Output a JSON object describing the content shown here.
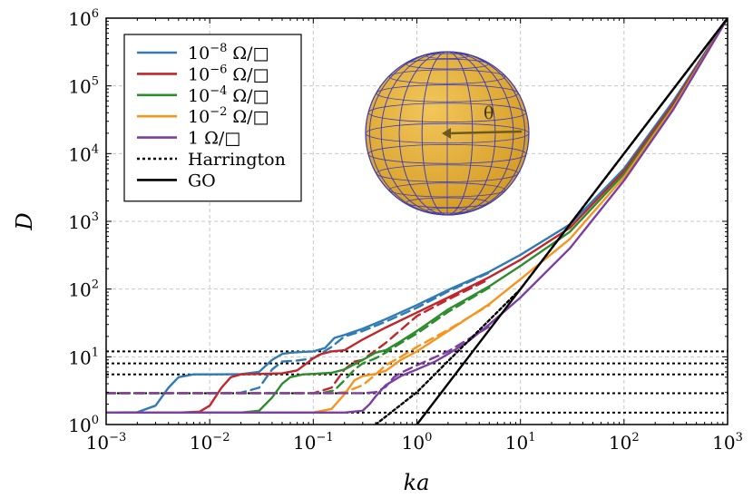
{
  "chart_data": {
    "type": "line",
    "title": "",
    "xlabel": "ka",
    "ylabel": "D",
    "xscale": "log",
    "yscale": "log",
    "xlim": [
      0.001,
      1000
    ],
    "ylim": [
      1,
      1000000
    ],
    "grid": true,
    "legend_position": "top-left",
    "x_ticks": [
      {
        "base": "10",
        "exp": "−3",
        "value": 0.001
      },
      {
        "base": "10",
        "exp": "−2",
        "value": 0.01
      },
      {
        "base": "10",
        "exp": "−1",
        "value": 0.1
      },
      {
        "base": "10",
        "exp": "0",
        "value": 1
      },
      {
        "base": "10",
        "exp": "1",
        "value": 10
      },
      {
        "base": "10",
        "exp": "2",
        "value": 100
      },
      {
        "base": "10",
        "exp": "3",
        "value": 1000
      }
    ],
    "y_ticks": [
      {
        "base": "10",
        "exp": "0",
        "value": 1
      },
      {
        "base": "10",
        "exp": "1",
        "value": 10
      },
      {
        "base": "10",
        "exp": "2",
        "value": 100
      },
      {
        "base": "10",
        "exp": "3",
        "value": 1000
      },
      {
        "base": "10",
        "exp": "4",
        "value": 10000
      },
      {
        "base": "10",
        "exp": "5",
        "value": 100000
      },
      {
        "base": "10",
        "exp": "6",
        "value": 1000000
      }
    ],
    "series": [
      {
        "name": "10⁻⁸ Ω/□",
        "legend": {
          "prefix": "10",
          "exp": "−8",
          "unit": " Ω/□"
        },
        "color": "#2f7bb5",
        "style": "solid",
        "x": [
          0.001,
          0.002,
          0.003,
          0.004,
          0.005,
          0.007,
          0.01,
          0.02,
          0.03,
          0.04,
          0.05,
          0.06,
          0.08,
          0.1,
          0.13,
          0.16,
          0.2,
          0.3,
          0.5,
          1,
          2,
          5,
          10,
          30,
          100,
          300,
          1000
        ],
        "y": [
          1.5,
          1.52,
          1.9,
          3.5,
          5.0,
          5.5,
          5.5,
          5.55,
          6.0,
          9.0,
          11.0,
          11.5,
          11.8,
          12.0,
          13.5,
          19.0,
          21.0,
          26.0,
          36.0,
          58.0,
          97.0,
          180.0,
          320.0,
          900.0,
          6000.0,
          60000.0,
          1000000.0
        ]
      },
      {
        "name": "10⁻⁸ Ω/□ (dashed)",
        "color": "#2f7bb5",
        "style": "dashed",
        "x": [
          0.001,
          0.01,
          0.02,
          0.03,
          0.04,
          0.05,
          0.07,
          0.1,
          0.15,
          0.2,
          0.3,
          0.5,
          1,
          2,
          5
        ],
        "y": [
          2.9,
          2.9,
          2.95,
          3.5,
          6.5,
          8.5,
          8.8,
          9.5,
          14.0,
          20.0,
          24.0,
          33.0,
          53.0,
          92.0,
          175.0
        ]
      },
      {
        "name": "10⁻⁶ Ω/□",
        "legend": {
          "prefix": "10",
          "exp": "−6",
          "unit": " Ω/□"
        },
        "color": "#c0272d",
        "style": "solid",
        "x": [
          0.001,
          0.005,
          0.008,
          0.01,
          0.013,
          0.016,
          0.02,
          0.03,
          0.05,
          0.07,
          0.1,
          0.12,
          0.15,
          0.2,
          0.3,
          0.5,
          1,
          2,
          5,
          10,
          30,
          100,
          300,
          1000
        ],
        "y": [
          1.5,
          1.5,
          1.55,
          1.9,
          3.5,
          5.0,
          5.5,
          5.6,
          5.7,
          6.3,
          9.5,
          11.0,
          12.0,
          12.5,
          18.0,
          27.0,
          45.0,
          75.0,
          150.0,
          270.0,
          800.0,
          5500.0,
          55000.0,
          1000000.0
        ]
      },
      {
        "name": "10⁻⁶ Ω/□ (dashed)",
        "color": "#c0272d",
        "style": "dashed",
        "x": [
          0.001,
          0.1,
          0.15,
          0.2,
          0.25,
          0.3,
          0.5,
          1,
          2,
          5
        ],
        "y": [
          2.9,
          2.9,
          3.5,
          6.5,
          8.5,
          9.0,
          16.0,
          40.0,
          70.0,
          140.0
        ]
      },
      {
        "name": "10⁻⁴ Ω/□",
        "legend": {
          "prefix": "10",
          "exp": "−4",
          "unit": " Ω/□"
        },
        "color": "#2e8b2e",
        "style": "solid",
        "x": [
          0.001,
          0.02,
          0.03,
          0.04,
          0.05,
          0.06,
          0.08,
          0.1,
          0.15,
          0.2,
          0.3,
          0.4,
          0.5,
          0.7,
          1,
          2,
          5,
          10,
          30,
          100,
          300,
          1000
        ],
        "y": [
          1.5,
          1.5,
          1.6,
          2.5,
          4.0,
          5.0,
          5.5,
          5.6,
          5.8,
          6.5,
          9.0,
          11.5,
          12.5,
          17.0,
          24.0,
          50.0,
          110.0,
          220.0,
          700.0,
          5000.0,
          50000.0,
          1000000.0
        ]
      },
      {
        "name": "10⁻⁴ Ω/□ (dashed)",
        "color": "#2e8b2e",
        "style": "dashed",
        "x": [
          0.001,
          0.12,
          0.16,
          0.2,
          0.25,
          0.3,
          0.4,
          0.5,
          0.7,
          1,
          2,
          5
        ],
        "y": [
          2.9,
          2.9,
          3.2,
          4.5,
          6.5,
          8.0,
          9.5,
          11.5,
          16.0,
          22.0,
          46.0,
          105.0
        ]
      },
      {
        "name": "10⁻² Ω/□",
        "legend": {
          "prefix": "10",
          "exp": "−2",
          "unit": " Ω/□"
        },
        "color": "#f7941d",
        "style": "solid",
        "x": [
          0.001,
          0.1,
          0.15,
          0.2,
          0.25,
          0.3,
          0.4,
          0.5,
          0.7,
          1,
          1.5,
          2,
          3,
          5,
          10,
          30,
          100,
          300,
          1000
        ],
        "y": [
          1.5,
          1.5,
          1.7,
          2.8,
          4.5,
          5.2,
          5.6,
          6.2,
          9.0,
          12.0,
          18.0,
          24.0,
          36.0,
          60.0,
          140.0,
          550.0,
          4500.0,
          48000.0,
          1000000.0
        ]
      },
      {
        "name": "10⁻² Ω/□ (dashed)",
        "color": "#f7941d",
        "style": "dashed",
        "x": [
          0.001,
          0.15,
          0.2,
          0.3,
          0.4,
          0.5,
          0.7,
          1,
          2,
          5
        ],
        "y": [
          2.9,
          2.9,
          3.0,
          3.8,
          5.5,
          7.5,
          10.0,
          14.0,
          25.0,
          58.0
        ]
      },
      {
        "name": "1 Ω/□",
        "legend": {
          "prefix": "1",
          "exp": "",
          "unit": " Ω/□"
        },
        "color": "#7a3fa0",
        "style": "solid",
        "x": [
          0.001,
          0.2,
          0.3,
          0.35,
          0.4,
          0.45,
          0.5,
          0.7,
          1,
          1.5,
          2,
          3,
          5,
          10,
          30,
          100,
          300,
          1000
        ],
        "y": [
          1.5,
          1.5,
          1.6,
          2.0,
          2.6,
          3.2,
          3.8,
          5.2,
          6.5,
          8.5,
          11.0,
          16.0,
          30.0,
          75.0,
          400.0,
          4000.0,
          45000.0,
          1000000.0
        ]
      },
      {
        "name": "1 Ω/□ (dashed)",
        "color": "#7a3fa0",
        "style": "dashed",
        "x": [
          0.001,
          0.3,
          0.4,
          0.5,
          0.6,
          0.7,
          1,
          2,
          5
        ],
        "y": [
          2.9,
          2.9,
          3.0,
          3.6,
          5.0,
          5.8,
          7.5,
          12.0,
          28.0
        ]
      },
      {
        "name": "Harrington",
        "legend": {
          "prefix": "Harrington",
          "exp": "",
          "unit": ""
        },
        "color": "#000000",
        "style": "dotted",
        "x": [
          0.4,
          1,
          10,
          100,
          1000
        ],
        "y": [
          1.0,
          3.0,
          100.0,
          10000.0,
          1000000.0
        ]
      },
      {
        "name": "GO",
        "legend": {
          "prefix": "GO",
          "exp": "",
          "unit": ""
        },
        "color": "#000000",
        "style": "solid",
        "x": [
          1,
          10,
          100,
          1000
        ],
        "y": [
          1.0,
          100.0,
          10000.0,
          1000000.0
        ]
      }
    ],
    "hlines": [
      {
        "y": 12.0,
        "color": "#000000",
        "style": "dotted"
      },
      {
        "y": 8.0,
        "color": "#000000",
        "style": "dotted"
      },
      {
        "y": 5.5,
        "color": "#000000",
        "style": "dotted"
      },
      {
        "y": 2.9,
        "color": "#000000",
        "style": "dotted"
      },
      {
        "y": 1.5,
        "color": "#000000",
        "style": "dotted"
      }
    ],
    "inset": {
      "kind": "sphere-mesh",
      "fill_color": "#e6b037",
      "mesh_color": "#3d3db8",
      "arrow_color": "#6b5a20",
      "label": "θ"
    }
  }
}
